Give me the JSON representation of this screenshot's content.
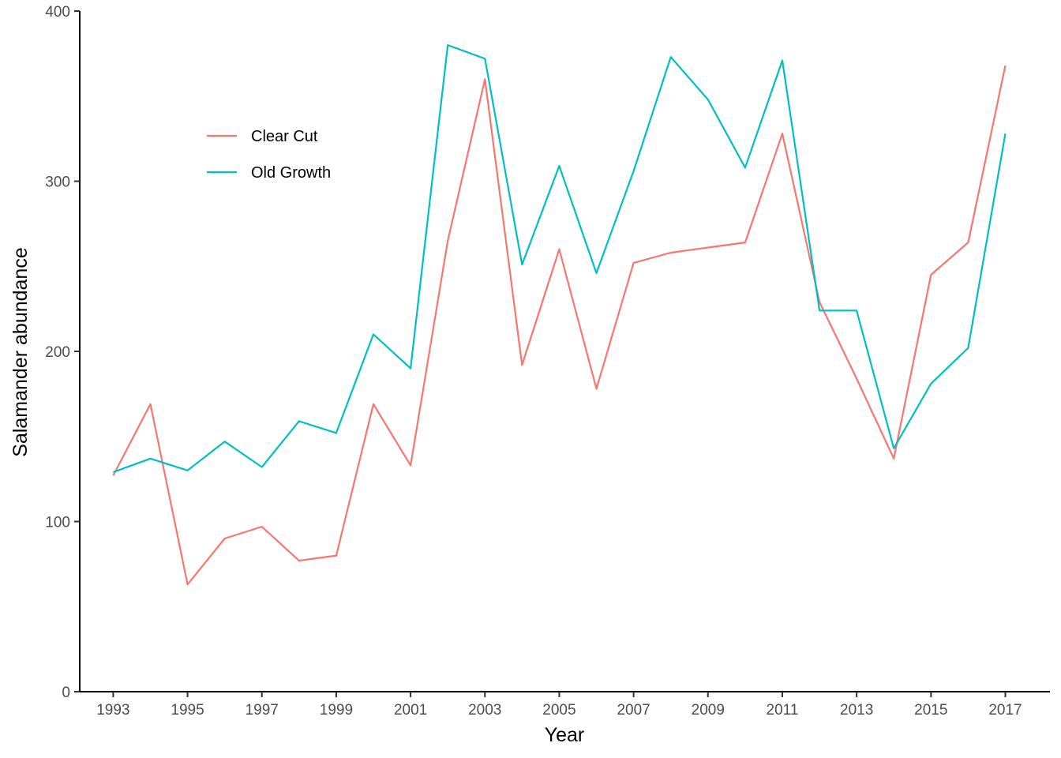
{
  "chart_data": {
    "type": "line",
    "title": "",
    "xlabel": "Year",
    "ylabel": "Salamander abundance",
    "x": [
      1993,
      1994,
      1995,
      1996,
      1997,
      1998,
      1999,
      2000,
      2001,
      2002,
      2003,
      2004,
      2005,
      2006,
      2007,
      2008,
      2009,
      2010,
      2011,
      2012,
      2013,
      2014,
      2015,
      2016,
      2017
    ],
    "xlim": [
      1992.1,
      2018.2
    ],
    "ylim": [
      0,
      400
    ],
    "x_ticks": [
      "1993",
      "1995",
      "1997",
      "1999",
      "2001",
      "2003",
      "2005",
      "2007",
      "2009",
      "2011",
      "2013",
      "2015",
      "2017"
    ],
    "y_ticks": [
      "0",
      "100",
      "200",
      "300",
      "400"
    ],
    "grid": false,
    "legend_position": "top-left",
    "series": [
      {
        "name": "Clear Cut",
        "color": "#F8766D",
        "values": [
          127,
          169,
          63,
          90,
          97,
          77,
          80,
          169,
          133,
          265,
          360,
          192,
          260,
          178,
          252,
          258,
          261,
          264,
          328,
          229,
          184,
          137,
          245,
          264,
          368
        ]
      },
      {
        "name": "Old Growth",
        "color": "#00BFC4",
        "values": [
          129,
          137,
          130,
          147,
          132,
          159,
          152,
          210,
          190,
          380,
          372,
          251,
          309,
          246,
          306,
          373,
          348,
          308,
          371,
          224,
          224,
          143,
          181,
          202,
          328
        ]
      }
    ]
  }
}
